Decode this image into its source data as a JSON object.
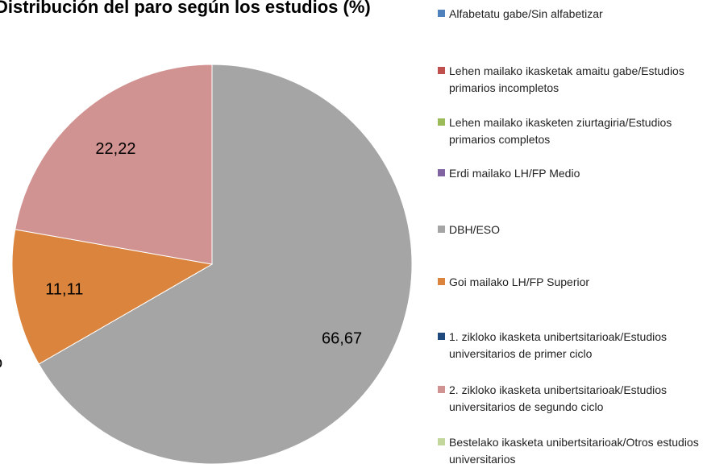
{
  "chart_data": {
    "type": "pie",
    "title": "Distribución del paro según los estudios (%)",
    "categories": [
      "Alfabetatu gabe/Sin alfabetizar",
      "Lehen mailako ikasketak amaitu gabe/Estudios primarios incompletos",
      "Lehen mailako ikasketen ziurtagiria/Estudios primarios completos",
      "Erdi mailako LH/FP Medio",
      "DBH/ESO",
      "Goi mailako LH/FP Superior",
      "1. zikloko ikasketa unibertsitarioak/Estudios universitarios de primer ciclo",
      "2. zikloko ikasketa unibertsitarioak/Estudios universitarios de segundo ciclo",
      "Bestelako ikasketa unibertsitarioak/Otros estudios universitarios"
    ],
    "values": [
      0,
      0,
      0,
      0,
      66.67,
      11.11,
      0,
      22.22,
      0
    ],
    "value_labels": [
      null,
      null,
      null,
      null,
      "66,67",
      "11,11",
      null,
      "22,22",
      null
    ],
    "colors": [
      "#4f81bd",
      "#c0504d",
      "#9bbb59",
      "#8064a2",
      "#a5a5a5",
      "#db843d",
      "#1f497d",
      "#d19392",
      "#c3d69b"
    ],
    "annotations": [
      "o"
    ],
    "legend": "right"
  }
}
